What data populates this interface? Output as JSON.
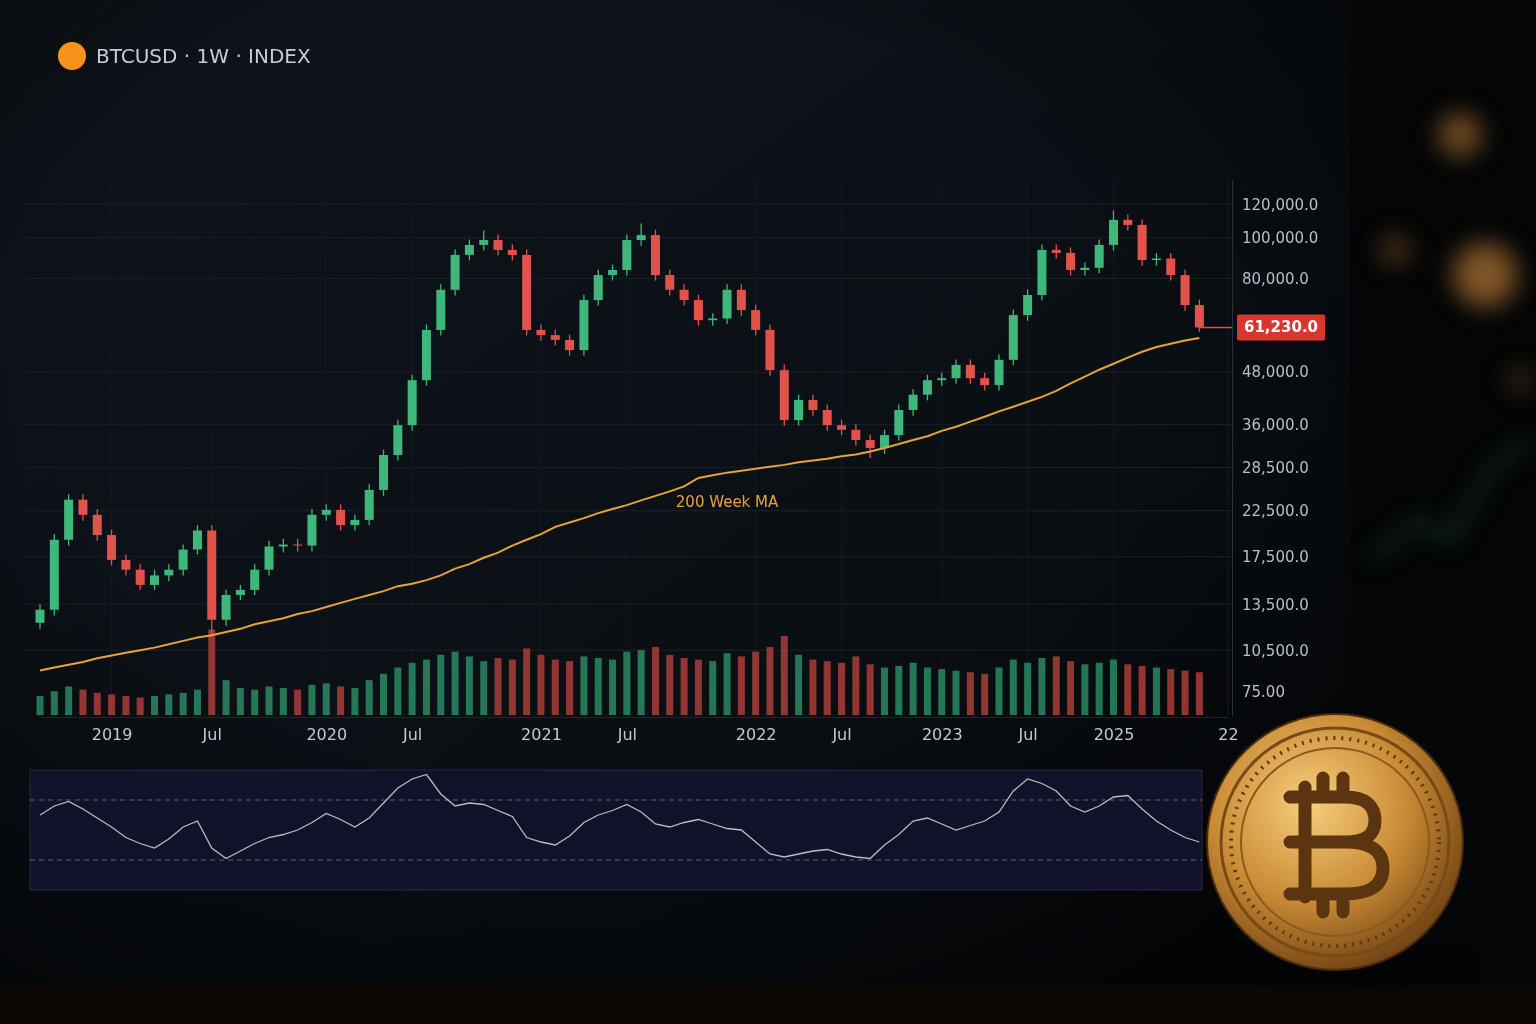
{
  "chart_data": {
    "type": "candlestick",
    "title": "BTCUSD · 1W · INDEX",
    "categories": [
      null,
      null,
      null,
      null,
      null,
      "2019",
      null,
      null,
      null,
      null,
      null,
      null,
      "Jul",
      null,
      null,
      null,
      null,
      null,
      null,
      null,
      "2020",
      null,
      null,
      null,
      null,
      null,
      "Jul",
      null,
      null,
      null,
      null,
      null,
      null,
      null,
      null,
      "2021",
      null,
      null,
      null,
      null,
      null,
      "Jul",
      null,
      null,
      null,
      null,
      null,
      null,
      null,
      null,
      "2022",
      null,
      null,
      null,
      null,
      null,
      "Jul",
      null,
      null,
      null,
      null,
      null,
      null,
      "2023",
      null,
      null,
      null,
      null,
      null,
      "Jul",
      null,
      null,
      null,
      null,
      null,
      "2025",
      null,
      null,
      null,
      null,
      null,
      null,
      null,
      "22"
    ],
    "open": [
      12200,
      13100,
      19200,
      23900,
      22000,
      19700,
      17200,
      16300,
      15000,
      15800,
      16300,
      18200,
      20200,
      12400,
      14200,
      14600,
      16300,
      18500,
      18700,
      18600,
      22000,
      22600,
      20800,
      21400,
      25200,
      30500,
      35900,
      45900,
      60400,
      75200,
      91000,
      96100,
      98700,
      93500,
      91000,
      60400,
      58700,
      57200,
      54100,
      71100,
      81500,
      83800,
      98700,
      101400,
      81500,
      75200,
      71100,
      63700,
      64300,
      75200,
      67300,
      60400,
      48500,
      36900,
      41200,
      39000,
      35900,
      35000,
      33100,
      31700,
      34000,
      39000,
      42400,
      45900,
      46400,
      49900,
      46400,
      44700,
      51300,
      65500,
      73100,
      93500,
      92000,
      83800,
      84800,
      96100,
      110200,
      107200,
      88500,
      89200,
      81500,
      69200,
      null,
      null
    ],
    "high": [
      13500,
      19800,
      24600,
      24600,
      22700,
      20300,
      17700,
      16800,
      16300,
      16800,
      18700,
      20800,
      20800,
      14600,
      15000,
      16800,
      19100,
      19300,
      19300,
      22700,
      23300,
      23300,
      22000,
      26000,
      31400,
      37000,
      47300,
      62200,
      77500,
      93700,
      99000,
      104000,
      101700,
      96300,
      93700,
      62200,
      60500,
      58900,
      73200,
      83900,
      86300,
      101700,
      108000,
      104400,
      83900,
      77500,
      73200,
      66200,
      77500,
      77500,
      69300,
      62200,
      50000,
      42400,
      42400,
      40200,
      37000,
      36100,
      34100,
      35000,
      40200,
      43700,
      47300,
      47800,
      51400,
      51400,
      47800,
      52800,
      67500,
      75300,
      96300,
      96300,
      94800,
      87300,
      99000,
      116000,
      113500,
      110400,
      91900,
      91900,
      83900,
      71300,
      null,
      null
    ],
    "low": [
      11800,
      12700,
      18600,
      21300,
      19100,
      16700,
      15800,
      14600,
      14600,
      15300,
      15800,
      17700,
      11300,
      12000,
      13800,
      14200,
      15800,
      17900,
      18000,
      18000,
      21300,
      20200,
      20200,
      20800,
      24400,
      29600,
      34800,
      44500,
      58600,
      72900,
      88300,
      93200,
      90700,
      88300,
      58600,
      56900,
      55500,
      52500,
      52500,
      69000,
      79100,
      81300,
      95700,
      79100,
      72900,
      69000,
      61800,
      61800,
      62400,
      65300,
      58600,
      47000,
      35800,
      35800,
      37800,
      34800,
      34000,
      32100,
      30000,
      30700,
      33000,
      37800,
      41100,
      44500,
      45000,
      45000,
      43400,
      43400,
      49800,
      63500,
      70900,
      89200,
      81300,
      81300,
      82300,
      93200,
      104000,
      85800,
      85800,
      79100,
      67100,
      59800,
      null,
      null
    ],
    "close": [
      13100,
      19200,
      23900,
      22000,
      19700,
      17200,
      16300,
      15000,
      15800,
      16300,
      18200,
      20200,
      12400,
      14200,
      14600,
      16300,
      18500,
      18700,
      18600,
      22000,
      22600,
      20800,
      21400,
      25200,
      30500,
      35900,
      45900,
      60400,
      75200,
      91000,
      96100,
      98700,
      93500,
      91000,
      60400,
      58700,
      57200,
      54100,
      71100,
      81500,
      83800,
      98700,
      101400,
      81500,
      75200,
      71100,
      63700,
      64300,
      75200,
      67300,
      60400,
      48500,
      36900,
      41200,
      39000,
      35900,
      35000,
      33100,
      31700,
      34000,
      39000,
      42400,
      45900,
      46400,
      49900,
      46400,
      44700,
      51300,
      65500,
      73100,
      93500,
      92000,
      83800,
      84800,
      96100,
      110200,
      107200,
      88500,
      89200,
      81500,
      69200,
      61230,
      null,
      null
    ],
    "series": [
      {
        "name": "200 Week MA",
        "type": "line",
        "color": "#e8a23a",
        "values": [
          9400,
          9550,
          9700,
          9850,
          10050,
          10200,
          10350,
          10500,
          10650,
          10850,
          11050,
          11250,
          11400,
          11600,
          11800,
          12100,
          12300,
          12500,
          12800,
          13000,
          13300,
          13600,
          13900,
          14200,
          14500,
          14900,
          15100,
          15400,
          15800,
          16400,
          16800,
          17400,
          17900,
          18600,
          19200,
          19800,
          20600,
          21100,
          21600,
          22200,
          22700,
          23200,
          23800,
          24400,
          25000,
          25700,
          26900,
          27300,
          27700,
          28000,
          28300,
          28600,
          28900,
          29300,
          29600,
          29900,
          30300,
          30600,
          31100,
          31700,
          32400,
          33100,
          33800,
          34800,
          35600,
          36600,
          37600,
          38700,
          39700,
          40800,
          41900,
          43300,
          45100,
          46800,
          48600,
          50200,
          51900,
          53600,
          55000,
          56000,
          57000,
          57800,
          null,
          null
        ]
      }
    ],
    "log": "y",
    "ylim": [
      8000,
      137000
    ],
    "yticks": [
      {
        "value": 10500,
        "label": "10,500.0"
      },
      {
        "value": 13500,
        "label": "13,500.0"
      },
      {
        "value": 17500,
        "label": "17,500.0"
      },
      {
        "value": 22500,
        "label": "22,500.0"
      },
      {
        "value": 28500,
        "label": "28,500.0"
      },
      {
        "value": 36000,
        "label": "36,000.0"
      },
      {
        "value": 48000,
        "label": "48,000.0"
      },
      {
        "value": 80000,
        "label": "80,000.0"
      },
      {
        "value": 100000,
        "label": "100,000.0"
      },
      {
        "value": 120000,
        "label": "120,000.0"
      }
    ],
    "grid": true,
    "last_price": {
      "value": 61230,
      "label": "61,230.0"
    },
    "volume": {
      "ylim": [
        0,
        300
      ],
      "yticks": [
        {
          "value": 75,
          "label": "75.00"
        }
      ],
      "values": [
        60,
        75,
        90,
        80,
        70,
        65,
        60,
        55,
        60,
        65,
        70,
        80,
        270,
        110,
        85,
        80,
        90,
        85,
        80,
        95,
        100,
        90,
        85,
        110,
        130,
        150,
        165,
        175,
        190,
        200,
        185,
        170,
        180,
        175,
        210,
        190,
        175,
        170,
        185,
        180,
        175,
        200,
        205,
        215,
        190,
        180,
        175,
        170,
        195,
        185,
        200,
        215,
        250,
        190,
        175,
        170,
        165,
        185,
        160,
        150,
        155,
        165,
        150,
        145,
        140,
        135,
        130,
        150,
        175,
        165,
        180,
        185,
        170,
        160,
        165,
        175,
        160,
        155,
        150,
        145,
        140,
        135,
        null,
        null
      ]
    },
    "oscillator": {
      "ylim": [
        10,
        90
      ],
      "levels": [
        30,
        70
      ],
      "values": [
        60,
        66,
        69,
        64,
        58,
        52,
        45,
        41,
        38,
        44,
        52,
        56,
        38,
        31,
        36,
        41,
        45,
        47,
        50,
        55,
        61,
        57,
        52,
        58,
        68,
        78,
        84,
        87,
        74,
        66,
        68,
        67,
        63,
        59,
        45,
        42,
        40,
        46,
        55,
        60,
        63,
        67,
        62,
        54,
        52,
        55,
        57,
        54,
        51,
        50,
        42,
        34,
        32,
        34,
        36,
        37,
        34,
        32,
        31,
        40,
        47,
        56,
        58,
        54,
        50,
        53,
        56,
        62,
        76,
        84,
        81,
        76,
        66,
        62,
        66,
        72,
        73,
        64,
        56,
        50,
        45,
        42,
        null,
        null
      ]
    }
  }
}
